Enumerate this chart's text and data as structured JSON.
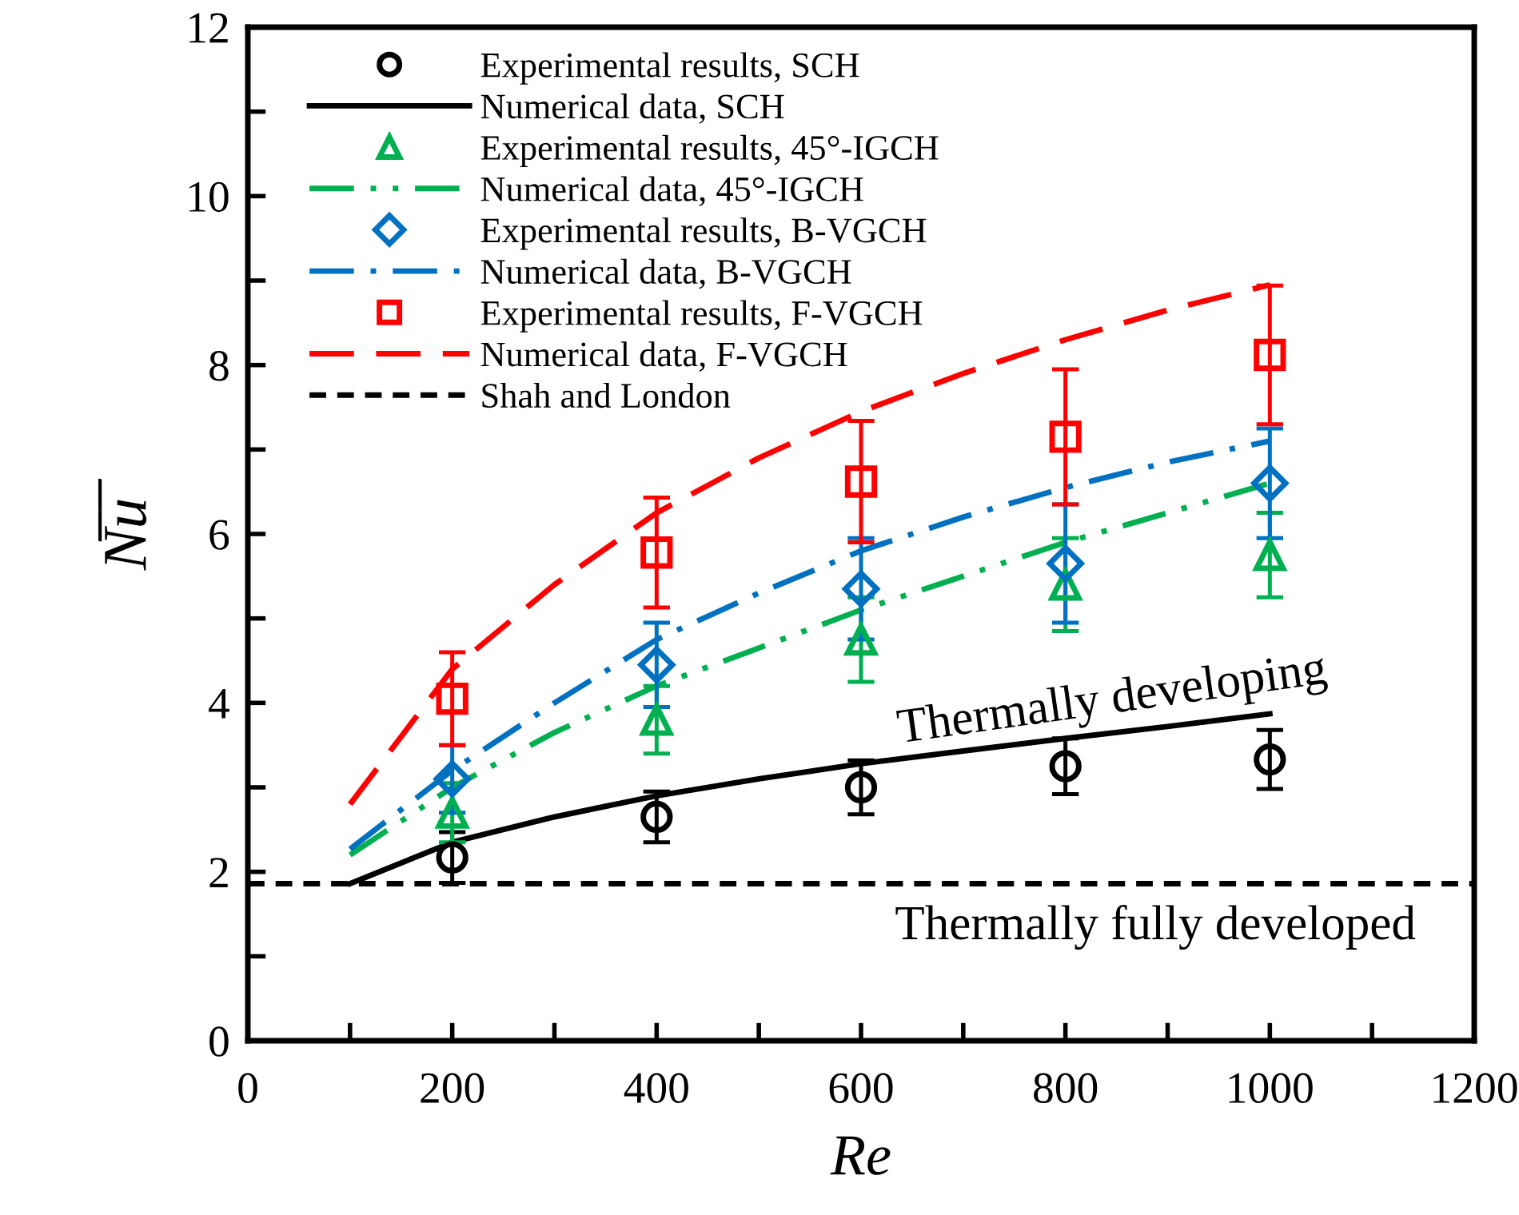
{
  "chart_data": {
    "type": "scatter",
    "xlabel": "Re",
    "ylabel": "N̅u̅",
    "xlim": [
      0,
      1200
    ],
    "ylim": [
      0,
      12
    ],
    "xticks": [
      0,
      {
        "value": 100,
        "label": null
      },
      200,
      {
        "value": 300,
        "label": null
      },
      400,
      {
        "value": 500,
        "label": null
      },
      600,
      {
        "value": 700,
        "label": null
      },
      800,
      {
        "value": 900,
        "label": null
      },
      1000,
      {
        "value": 1100,
        "label": null
      },
      1200
    ],
    "yticks": [
      0,
      {
        "value": 1,
        "label": null
      },
      2,
      {
        "value": 3,
        "label": null
      },
      4,
      {
        "value": 5,
        "label": null
      },
      6,
      {
        "value": 7,
        "label": null
      },
      8,
      {
        "value": 9,
        "label": null
      },
      10,
      {
        "value": 11,
        "label": null
      },
      12
    ],
    "grid": false,
    "legend": "top left",
    "series": [
      {
        "name": "Experimental results, SCH",
        "marker": "circle",
        "color": "#000000",
        "x": [
          200,
          400,
          600,
          800,
          1000
        ],
        "values": [
          2.17,
          2.65,
          3.0,
          3.25,
          3.33
        ],
        "errors": [
          0.3,
          0.3,
          0.32,
          0.33,
          0.35
        ]
      },
      {
        "name": "Numerical data, SCH",
        "type": "line",
        "line_style": "solid",
        "color": "#000000",
        "x": [
          100,
          200,
          300,
          400,
          500,
          600,
          700,
          800,
          900,
          1000
        ],
        "values": [
          1.86,
          2.35,
          2.65,
          2.9,
          3.1,
          3.28,
          3.43,
          3.58,
          3.72,
          3.87
        ]
      },
      {
        "name": "Experimental results, 45°-IGCH",
        "marker": "triangle",
        "color": "#00b050",
        "x": [
          200,
          400,
          600,
          800,
          1000
        ],
        "values": [
          2.7,
          3.8,
          4.75,
          5.4,
          5.75
        ],
        "errors": [
          0.35,
          0.4,
          0.5,
          0.55,
          0.5
        ]
      },
      {
        "name": "Numerical data, 45°-IGCH",
        "type": "line",
        "line_style": "dashdotdot",
        "color": "#00b050",
        "x": [
          100,
          200,
          300,
          400,
          500,
          600,
          700,
          800,
          900,
          1000
        ],
        "values": [
          2.2,
          3.0,
          3.65,
          4.2,
          4.65,
          5.1,
          5.5,
          5.9,
          6.25,
          6.6
        ]
      },
      {
        "name": "Experimental results, B-VGCH",
        "marker": "diamond",
        "color": "#0070c0",
        "x": [
          200,
          400,
          600,
          800,
          1000
        ],
        "values": [
          3.1,
          4.45,
          5.35,
          5.65,
          6.6
        ],
        "errors": [
          0.4,
          0.5,
          0.6,
          0.7,
          0.65
        ]
      },
      {
        "name": "Numerical data, B-VGCH",
        "type": "line",
        "line_style": "dashdot",
        "color": "#0070c0",
        "x": [
          100,
          200,
          300,
          400,
          500,
          600,
          700,
          800,
          900,
          1000
        ],
        "values": [
          2.27,
          3.2,
          4.0,
          4.75,
          5.3,
          5.8,
          6.2,
          6.55,
          6.85,
          7.1
        ]
      },
      {
        "name": "Experimental results, F-VGCH",
        "marker": "square",
        "color": "#ff0000",
        "x": [
          200,
          400,
          600,
          800,
          1000
        ],
        "values": [
          4.05,
          5.78,
          6.62,
          7.15,
          8.12
        ],
        "errors": [
          0.55,
          0.65,
          0.72,
          0.8,
          0.82
        ]
      },
      {
        "name": "Numerical data, F-VGCH",
        "type": "line",
        "line_style": "dashed",
        "color": "#ff0000",
        "x": [
          100,
          200,
          300,
          400,
          500,
          600,
          700,
          800,
          900,
          1000
        ],
        "values": [
          2.8,
          4.4,
          5.4,
          6.25,
          6.9,
          7.45,
          7.9,
          8.3,
          8.65,
          8.95
        ]
      }
    ],
    "ref_lines": [
      {
        "axis": "y",
        "value": 1.86,
        "label": "Shah and London",
        "color": "#000000",
        "line_style": "dashed"
      }
    ],
    "annotations": [
      "Thermally developing",
      "Thermally fully developed"
    ]
  }
}
